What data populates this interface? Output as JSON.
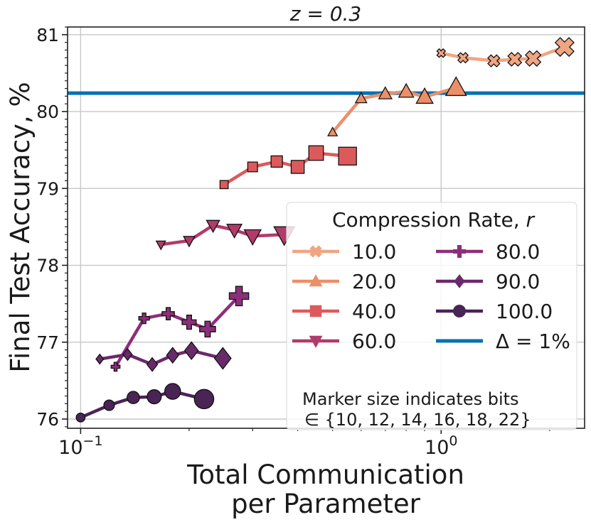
{
  "chart_data": {
    "type": "line",
    "title": "z = 0.3",
    "xlabel_lines": [
      "Total Communication",
      "per Parameter"
    ],
    "ylabel": "Final Test Accuracy, %",
    "x_scale": "log",
    "xlim": [
      0.092,
      2.5
    ],
    "ylim": [
      75.88,
      81.1
    ],
    "x_ticks": [
      {
        "value": 0.1,
        "base": "10",
        "exp": "−1"
      },
      {
        "value": 1.0,
        "base": "10",
        "exp": "0"
      }
    ],
    "y_ticks": [
      76,
      77,
      78,
      79,
      80,
      81
    ],
    "grid": true,
    "legend": {
      "title": "Compression Rate, r",
      "placement": "center-right",
      "note_lines": [
        "Marker size indicates bits",
        "∈ {10, 12, 14, 16, 18, 22}"
      ]
    },
    "reference_line": {
      "name": "Δ = 1%",
      "y": 80.24,
      "color": "#0072b2"
    },
    "series": [
      {
        "name": "10.0",
        "marker": "x",
        "color": "#f0a582",
        "points": [
          [
            1.0,
            80.76,
            10
          ],
          [
            1.15,
            80.7,
            12
          ],
          [
            1.4,
            80.66,
            14
          ],
          [
            1.6,
            80.68,
            16
          ],
          [
            1.8,
            80.69,
            18
          ],
          [
            2.2,
            80.84,
            22
          ]
        ]
      },
      {
        "name": "20.0",
        "marker": "triangle-up",
        "color": "#ec8f69",
        "points": [
          [
            0.5,
            79.73,
            10
          ],
          [
            0.6,
            80.17,
            12
          ],
          [
            0.7,
            80.23,
            14
          ],
          [
            0.8,
            80.26,
            16
          ],
          [
            0.9,
            80.19,
            18
          ],
          [
            1.1,
            80.31,
            22
          ]
        ]
      },
      {
        "name": "40.0",
        "marker": "square",
        "color": "#dd5a5a",
        "points": [
          [
            0.25,
            79.05,
            10
          ],
          [
            0.3,
            79.28,
            12
          ],
          [
            0.35,
            79.35,
            14
          ],
          [
            0.4,
            79.28,
            16
          ],
          [
            0.45,
            79.46,
            18
          ],
          [
            0.55,
            79.42,
            22
          ]
        ]
      },
      {
        "name": "60.0",
        "marker": "triangle-down",
        "color": "#b13b6a",
        "points": [
          [
            0.167,
            78.27,
            10
          ],
          [
            0.2,
            78.32,
            12
          ],
          [
            0.233,
            78.52,
            14
          ],
          [
            0.267,
            78.46,
            16
          ],
          [
            0.3,
            78.38,
            18
          ],
          [
            0.367,
            78.4,
            22
          ]
        ]
      },
      {
        "name": "80.0",
        "marker": "plus",
        "color": "#8c2e7a",
        "points": [
          [
            0.125,
            76.68,
            10
          ],
          [
            0.15,
            77.31,
            12
          ],
          [
            0.175,
            77.37,
            14
          ],
          [
            0.2,
            77.26,
            16
          ],
          [
            0.225,
            77.17,
            18
          ],
          [
            0.275,
            77.6,
            22
          ]
        ]
      },
      {
        "name": "90.0",
        "marker": "diamond",
        "color": "#6a2a6a",
        "points": [
          [
            0.113,
            76.78,
            10
          ],
          [
            0.135,
            76.84,
            12
          ],
          [
            0.158,
            76.71,
            14
          ],
          [
            0.18,
            76.83,
            16
          ],
          [
            0.203,
            76.89,
            18
          ],
          [
            0.248,
            76.79,
            22
          ]
        ]
      },
      {
        "name": "100.0",
        "marker": "circle",
        "color": "#4a2455",
        "points": [
          [
            0.1,
            76.02,
            10
          ],
          [
            0.12,
            76.18,
            12
          ],
          [
            0.14,
            76.28,
            14
          ],
          [
            0.16,
            76.29,
            16
          ],
          [
            0.18,
            76.36,
            18
          ],
          [
            0.22,
            76.26,
            22
          ]
        ]
      }
    ]
  }
}
